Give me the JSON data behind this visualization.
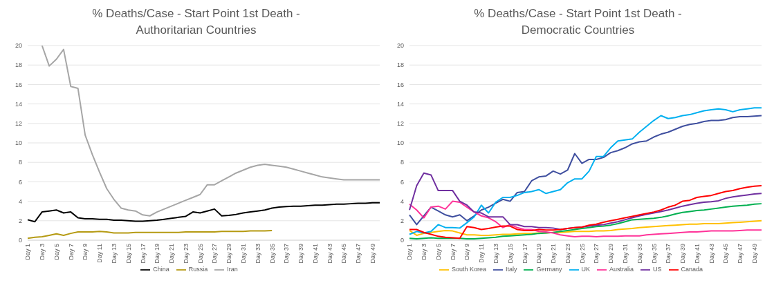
{
  "chart_data": [
    {
      "type": "line",
      "title": "% Deaths/Case - Start Point 1st Death - Authoritarian Countries",
      "categories": [
        "Day 1",
        null,
        "Day 3",
        null,
        "Day 5",
        null,
        "Day 7",
        null,
        "Day 9",
        null,
        "Day 11",
        null,
        "Day 13",
        null,
        "Day 15",
        null,
        "Day 17",
        null,
        "Day 19",
        null,
        "Day 21",
        null,
        "Day 23",
        null,
        "Day 25",
        null,
        "Day 27",
        null,
        "Day 29",
        null,
        "Day 31",
        null,
        "Day 33",
        null,
        "Day 35",
        null,
        "Day 37",
        null,
        "Day 39",
        null,
        "Day 41",
        null,
        "Day 43",
        null,
        "Day 45",
        null,
        "Day 47",
        null,
        "Day 49",
        null
      ],
      "series": [
        {
          "name": "China",
          "color": "#000000",
          "values": [
            2.1,
            1.9,
            2.9,
            3.0,
            3.1,
            2.8,
            2.9,
            2.3,
            2.2,
            2.2,
            2.15,
            2.15,
            2.05,
            2.05,
            2.0,
            1.95,
            1.95,
            2.0,
            2.05,
            2.15,
            2.25,
            2.35,
            2.45,
            2.9,
            2.8,
            3.0,
            3.2,
            2.5,
            2.55,
            2.65,
            2.8,
            2.9,
            3.0,
            3.1,
            3.3,
            3.4,
            3.45,
            3.5,
            3.5,
            3.55,
            3.6,
            3.6,
            3.65,
            3.7,
            3.7,
            3.75,
            3.8,
            3.8,
            3.85,
            3.85
          ]
        },
        {
          "name": "Russia",
          "color": "#b59a12",
          "values": [
            0.2,
            0.3,
            0.35,
            0.5,
            0.65,
            0.5,
            0.7,
            0.85,
            0.85,
            0.85,
            0.9,
            0.85,
            0.75,
            0.75,
            0.75,
            0.8,
            0.8,
            0.8,
            0.8,
            0.8,
            0.8,
            0.8,
            0.85,
            0.85,
            0.85,
            0.85,
            0.85,
            0.9,
            0.9,
            0.9,
            0.9,
            0.95,
            0.95,
            0.95,
            1.0,
            null,
            null,
            null,
            null,
            null,
            null,
            null,
            null,
            null,
            null,
            null,
            null,
            null,
            null,
            null
          ]
        },
        {
          "name": "Iran",
          "color": "#a6a6a6",
          "values": [
            null,
            null,
            20,
            17.9,
            18.6,
            19.6,
            15.8,
            15.6,
            10.8,
            8.8,
            7.0,
            5.3,
            4.2,
            3.3,
            3.1,
            3.0,
            2.6,
            2.5,
            2.9,
            3.2,
            3.5,
            3.8,
            4.1,
            4.4,
            4.7,
            5.7,
            5.7,
            6.1,
            6.5,
            6.9,
            7.2,
            7.5,
            7.7,
            7.8,
            7.7,
            7.6,
            7.5,
            7.3,
            7.1,
            6.9,
            6.7,
            6.5,
            6.4,
            6.3,
            6.2,
            6.2,
            6.2,
            6.2,
            6.2,
            6.2
          ]
        }
      ],
      "ylim": [
        0,
        20
      ],
      "yticks": [
        0,
        2,
        4,
        6,
        8,
        10,
        12,
        14,
        16,
        18,
        20
      ],
      "grid": "y",
      "legend": "bottom",
      "marker": "none",
      "line_style": "solid"
    },
    {
      "type": "line",
      "title": "% Deaths/Case - Start Point 1st Death - Democratic Countries",
      "categories": [
        "Day 1",
        null,
        "Day 3",
        null,
        "Day 5",
        null,
        "Day 7",
        null,
        "Day 9",
        null,
        "Day 11",
        null,
        "Day 13",
        null,
        "Day 15",
        null,
        "Day 17",
        null,
        "Day 19",
        null,
        "Day 21",
        null,
        "Day 23",
        null,
        "Day 25",
        null,
        "Day 27",
        null,
        "Day 29",
        null,
        "Day 31",
        null,
        "Day 33",
        null,
        "Day 35",
        null,
        "Day 37",
        null,
        "Day 39",
        null,
        "Day 41",
        null,
        "Day 43",
        null,
        "Day 45",
        null,
        "Day 47",
        null,
        "Day 49",
        null
      ],
      "series": [
        {
          "name": "South Korea",
          "color": "#ffc000",
          "values": [
            1.0,
            0.5,
            0.7,
            0.8,
            0.9,
            1.0,
            0.95,
            0.75,
            0.55,
            0.55,
            0.5,
            0.5,
            0.55,
            0.6,
            0.6,
            0.65,
            0.7,
            0.7,
            0.75,
            0.75,
            0.8,
            0.8,
            0.85,
            0.9,
            0.9,
            0.9,
            0.95,
            0.95,
            1.0,
            1.1,
            1.15,
            1.2,
            1.3,
            1.35,
            1.4,
            1.45,
            1.5,
            1.55,
            1.6,
            1.65,
            1.65,
            1.7,
            1.7,
            1.7,
            1.75,
            1.8,
            1.85,
            1.9,
            1.95,
            2.0
          ]
        },
        {
          "name": "Italy",
          "color": "#3f4f9f",
          "values": [
            2.6,
            1.6,
            2.5,
            3.4,
            3.0,
            2.6,
            2.4,
            2.6,
            2.0,
            2.5,
            3.1,
            3.4,
            3.8,
            4.2,
            4.0,
            4.9,
            5.0,
            6.1,
            6.5,
            6.6,
            7.1,
            6.8,
            7.2,
            8.9,
            7.9,
            8.3,
            8.3,
            8.5,
            9.0,
            9.2,
            9.5,
            9.9,
            10.1,
            10.2,
            10.6,
            10.9,
            11.1,
            11.4,
            11.7,
            11.9,
            12.0,
            12.2,
            12.3,
            12.3,
            12.4,
            12.6,
            12.7,
            12.7,
            12.75,
            12.8
          ]
        },
        {
          "name": "Germany",
          "color": "#00b050",
          "values": [
            0.2,
            0.15,
            0.2,
            0.25,
            0.2,
            0.2,
            0.2,
            0.2,
            0.15,
            0.15,
            0.2,
            0.25,
            0.3,
            0.4,
            0.45,
            0.5,
            0.55,
            0.6,
            0.7,
            0.75,
            0.8,
            0.9,
            1.0,
            1.1,
            1.2,
            1.3,
            1.4,
            1.45,
            1.55,
            1.7,
            1.9,
            2.1,
            2.15,
            2.2,
            2.25,
            2.35,
            2.5,
            2.7,
            2.85,
            2.95,
            3.05,
            3.1,
            3.2,
            3.3,
            3.4,
            3.5,
            3.55,
            3.6,
            3.7,
            3.75
          ]
        },
        {
          "name": "UK",
          "color": "#00b0f0",
          "values": [
            0.6,
            0.9,
            0.75,
            0.9,
            1.6,
            1.3,
            1.3,
            1.25,
            1.8,
            2.4,
            3.6,
            2.8,
            3.9,
            4.4,
            4.4,
            4.6,
            4.9,
            5.0,
            5.2,
            4.8,
            5.0,
            5.2,
            5.9,
            6.3,
            6.3,
            7.1,
            8.6,
            8.6,
            9.5,
            10.2,
            10.3,
            10.4,
            11.1,
            11.7,
            12.3,
            12.8,
            12.5,
            12.6,
            12.8,
            12.9,
            13.1,
            13.3,
            13.4,
            13.5,
            13.4,
            13.2,
            13.4,
            13.5,
            13.6,
            13.6
          ]
        },
        {
          "name": "Australia",
          "color": "#ff3399",
          "values": [
            3.7,
            3.1,
            2.3,
            3.4,
            3.5,
            3.2,
            4.0,
            3.9,
            3.4,
            2.9,
            2.5,
            2.3,
            1.9,
            1.3,
            1.6,
            1.3,
            1.1,
            1.1,
            0.9,
            0.85,
            0.75,
            0.55,
            0.45,
            0.35,
            0.4,
            0.4,
            0.35,
            0.4,
            0.4,
            0.4,
            0.45,
            0.45,
            0.45,
            0.55,
            0.6,
            0.65,
            0.7,
            0.75,
            0.8,
            0.85,
            0.85,
            0.9,
            0.95,
            0.95,
            0.95,
            0.95,
            1.0,
            1.05,
            1.05,
            1.05
          ]
        },
        {
          "name": "US",
          "color": "#7030a0",
          "values": [
            3.1,
            5.6,
            6.9,
            6.7,
            5.1,
            5.1,
            5.1,
            4.0,
            3.6,
            2.9,
            2.8,
            2.4,
            2.4,
            2.4,
            1.6,
            1.6,
            1.4,
            1.4,
            1.3,
            1.3,
            1.25,
            1.1,
            1.2,
            1.3,
            1.35,
            1.45,
            1.55,
            1.6,
            1.75,
            1.9,
            2.1,
            2.3,
            2.5,
            2.65,
            2.8,
            2.95,
            3.1,
            3.3,
            3.5,
            3.65,
            3.8,
            3.9,
            3.95,
            4.05,
            4.3,
            4.45,
            4.55,
            4.65,
            4.75,
            4.8
          ]
        },
        {
          "name": "Canada",
          "color": "#ff0000",
          "values": [
            1.1,
            1.1,
            0.8,
            0.6,
            0.4,
            0.3,
            0.25,
            0.2,
            1.4,
            1.3,
            1.1,
            1.2,
            1.35,
            1.45,
            1.45,
            1.1,
            1.0,
            1.0,
            1.1,
            1.05,
            1.05,
            1.1,
            1.2,
            1.3,
            1.35,
            1.55,
            1.65,
            1.85,
            2.0,
            2.15,
            2.3,
            2.45,
            2.6,
            2.75,
            2.9,
            3.1,
            3.4,
            3.6,
            4.0,
            4.1,
            4.4,
            4.5,
            4.6,
            4.8,
            5.0,
            5.1,
            5.3,
            5.45,
            5.55,
            5.6
          ]
        }
      ],
      "ylim": [
        0,
        20
      ],
      "yticks": [
        0,
        2,
        4,
        6,
        8,
        10,
        12,
        14,
        16,
        18,
        20
      ],
      "grid": "y",
      "legend": "bottom",
      "marker": "none",
      "line_style": "solid"
    }
  ]
}
